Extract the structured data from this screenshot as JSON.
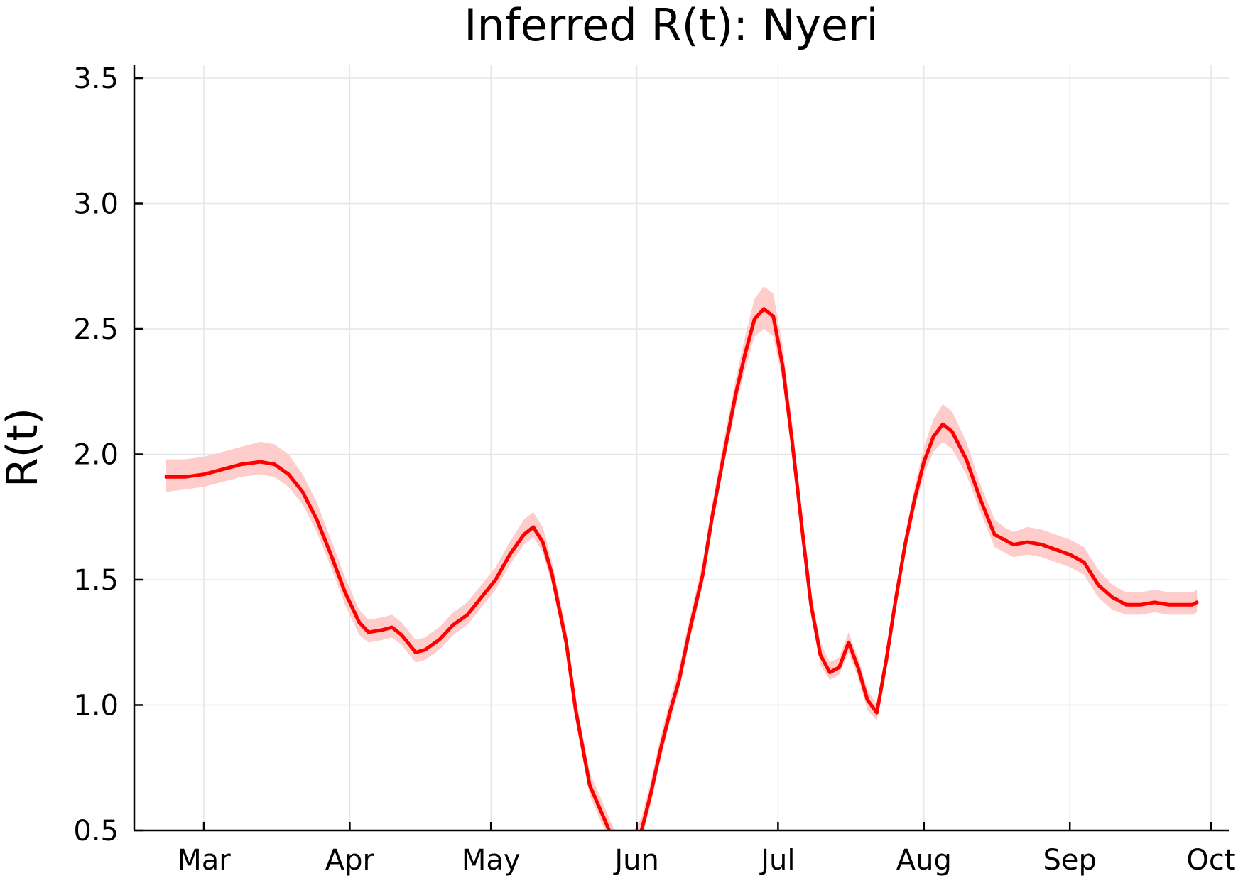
{
  "chart_data": {
    "type": "line",
    "title": "Inferred R(t): Nyeri",
    "ylabel": "R(t)",
    "xlabel": "",
    "ylim": [
      0.5,
      3.55
    ],
    "xlim": [
      "2020-02-16",
      "2020-10-04"
    ],
    "yticks": [
      "0.5",
      "1.0",
      "1.5",
      "2.0",
      "2.5",
      "3.0",
      "3.5"
    ],
    "xticks": [
      {
        "date": "2020-03-01",
        "label": "Mar"
      },
      {
        "date": "2020-04-01",
        "label": "Apr"
      },
      {
        "date": "2020-05-01",
        "label": "May"
      },
      {
        "date": "2020-06-01",
        "label": "Jun"
      },
      {
        "date": "2020-07-01",
        "label": "Jul"
      },
      {
        "date": "2020-08-01",
        "label": "Aug"
      },
      {
        "date": "2020-09-01",
        "label": "Sep"
      },
      {
        "date": "2020-10-01",
        "label": "Oct"
      }
    ],
    "grid": true,
    "legend": "none",
    "line_color": "#ff0000",
    "band_color": "#ffcccc",
    "series": [
      {
        "x": [
          "2020-02-22",
          "2020-02-26",
          "2020-03-01",
          "2020-03-05",
          "2020-03-09",
          "2020-03-13",
          "2020-03-16",
          "2020-03-19",
          "2020-03-22",
          "2020-03-25",
          "2020-03-28",
          "2020-03-31",
          "2020-04-03",
          "2020-04-05",
          "2020-04-08",
          "2020-04-10",
          "2020-04-12",
          "2020-04-15",
          "2020-04-17",
          "2020-04-20",
          "2020-04-23",
          "2020-04-26",
          "2020-04-29",
          "2020-05-02",
          "2020-05-05",
          "2020-05-08",
          "2020-05-10",
          "2020-05-12",
          "2020-05-14",
          "2020-05-17",
          "2020-05-19",
          "2020-05-22",
          "2020-05-25",
          "2020-05-27",
          "2020-05-29",
          "2020-05-31",
          "2020-06-02",
          "2020-06-04",
          "2020-06-06",
          "2020-06-08",
          "2020-06-10",
          "2020-06-12",
          "2020-06-15",
          "2020-06-17",
          "2020-06-19",
          "2020-06-22",
          "2020-06-24",
          "2020-06-26",
          "2020-06-28",
          "2020-06-30",
          "2020-07-02",
          "2020-07-04",
          "2020-07-06",
          "2020-07-08",
          "2020-07-10",
          "2020-07-12",
          "2020-07-14",
          "2020-07-16",
          "2020-07-18",
          "2020-07-20",
          "2020-07-22",
          "2020-07-24",
          "2020-07-26",
          "2020-07-28",
          "2020-07-30",
          "2020-08-01",
          "2020-08-03",
          "2020-08-05",
          "2020-08-07",
          "2020-08-10",
          "2020-08-13",
          "2020-08-16",
          "2020-08-18",
          "2020-08-20",
          "2020-08-23",
          "2020-08-26",
          "2020-08-29",
          "2020-09-01",
          "2020-09-04",
          "2020-09-07",
          "2020-09-10",
          "2020-09-13",
          "2020-09-16",
          "2020-09-19",
          "2020-09-22",
          "2020-09-25",
          "2020-09-27",
          "2020-09-28"
        ],
        "y": [
          1.91,
          1.91,
          1.92,
          1.94,
          1.96,
          1.97,
          1.96,
          1.92,
          1.85,
          1.74,
          1.6,
          1.45,
          1.33,
          1.29,
          1.3,
          1.31,
          1.28,
          1.21,
          1.22,
          1.26,
          1.32,
          1.36,
          1.43,
          1.5,
          1.6,
          1.68,
          1.71,
          1.65,
          1.52,
          1.25,
          0.98,
          0.68,
          0.55,
          0.46,
          0.43,
          0.44,
          0.5,
          0.65,
          0.82,
          0.97,
          1.1,
          1.28,
          1.52,
          1.75,
          1.95,
          2.24,
          2.4,
          2.54,
          2.58,
          2.55,
          2.35,
          2.05,
          1.72,
          1.4,
          1.2,
          1.13,
          1.15,
          1.25,
          1.15,
          1.02,
          0.97,
          1.18,
          1.42,
          1.64,
          1.82,
          1.97,
          2.07,
          2.12,
          2.09,
          1.98,
          1.82,
          1.68,
          1.66,
          1.64,
          1.65,
          1.64,
          1.62,
          1.6,
          1.57,
          1.48,
          1.43,
          1.4,
          1.4,
          1.41,
          1.4,
          1.4,
          1.4,
          1.41
        ],
        "lower": [
          1.85,
          1.86,
          1.87,
          1.89,
          1.91,
          1.92,
          1.91,
          1.87,
          1.8,
          1.69,
          1.55,
          1.4,
          1.28,
          1.25,
          1.26,
          1.27,
          1.24,
          1.17,
          1.18,
          1.22,
          1.28,
          1.32,
          1.39,
          1.46,
          1.56,
          1.64,
          1.67,
          1.61,
          1.48,
          1.21,
          0.94,
          0.64,
          0.51,
          0.42,
          0.39,
          0.4,
          0.46,
          0.61,
          0.78,
          0.93,
          1.06,
          1.24,
          1.48,
          1.71,
          1.91,
          2.19,
          2.34,
          2.47,
          2.5,
          2.47,
          2.29,
          1.99,
          1.67,
          1.36,
          1.16,
          1.1,
          1.12,
          1.21,
          1.11,
          0.98,
          0.94,
          1.14,
          1.38,
          1.6,
          1.78,
          1.92,
          2.01,
          2.05,
          2.02,
          1.92,
          1.77,
          1.63,
          1.61,
          1.59,
          1.6,
          1.59,
          1.57,
          1.55,
          1.52,
          1.43,
          1.38,
          1.36,
          1.36,
          1.37,
          1.36,
          1.36,
          1.36,
          1.37
        ],
        "upper": [
          1.98,
          1.98,
          1.99,
          2.01,
          2.03,
          2.05,
          2.04,
          2.0,
          1.92,
          1.81,
          1.66,
          1.51,
          1.38,
          1.34,
          1.35,
          1.36,
          1.33,
          1.26,
          1.27,
          1.31,
          1.37,
          1.41,
          1.48,
          1.55,
          1.65,
          1.74,
          1.77,
          1.71,
          1.57,
          1.3,
          1.03,
          0.73,
          0.6,
          0.51,
          0.48,
          0.49,
          0.55,
          0.7,
          0.87,
          1.02,
          1.15,
          1.33,
          1.57,
          1.8,
          2.01,
          2.3,
          2.47,
          2.62,
          2.67,
          2.64,
          2.43,
          2.12,
          1.78,
          1.45,
          1.25,
          1.17,
          1.19,
          1.29,
          1.19,
          1.06,
          1.0,
          1.22,
          1.46,
          1.68,
          1.87,
          2.03,
          2.14,
          2.2,
          2.17,
          2.05,
          1.88,
          1.74,
          1.71,
          1.69,
          1.71,
          1.7,
          1.68,
          1.66,
          1.63,
          1.54,
          1.48,
          1.45,
          1.45,
          1.46,
          1.45,
          1.45,
          1.45,
          1.46
        ]
      }
    ]
  }
}
